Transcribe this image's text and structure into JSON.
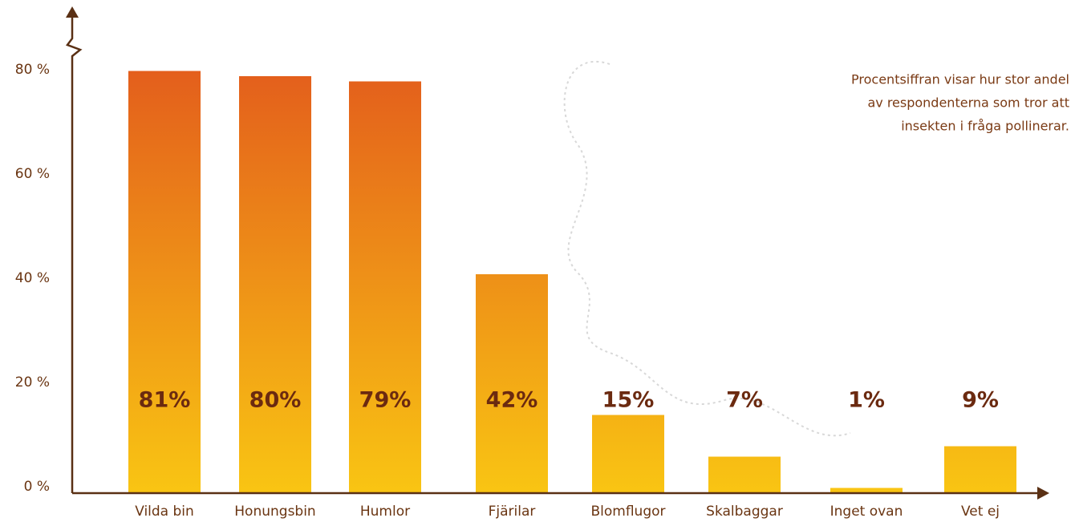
{
  "chart_data": {
    "type": "bar",
    "categories": [
      "Vilda bin",
      "Honungsbin",
      "Humlor",
      "Fjärilar",
      "Blomflugor",
      "Skalbaggar",
      "Inget ovan",
      "Vet ej"
    ],
    "values": [
      81,
      80,
      79,
      42,
      15,
      7,
      1,
      9
    ],
    "value_labels": [
      "81%",
      "80%",
      "79%",
      "42%",
      "15%",
      "7%",
      "1%",
      "9%"
    ],
    "gradient": [
      "#e35d1c",
      "#f9c513"
    ],
    "ylim": [
      0,
      85
    ],
    "yticks": [
      {
        "value": 0,
        "label": "0 %"
      },
      {
        "value": 20,
        "label": "20 %"
      },
      {
        "value": 40,
        "label": "40 %"
      },
      {
        "value": 60,
        "label": "60 %"
      },
      {
        "value": 80,
        "label": "80 %"
      }
    ],
    "annotation": [
      "Procentsiffran visar hur stor andel",
      "av respondenterna som tror att",
      "insekten i fråga pollinerar."
    ]
  }
}
